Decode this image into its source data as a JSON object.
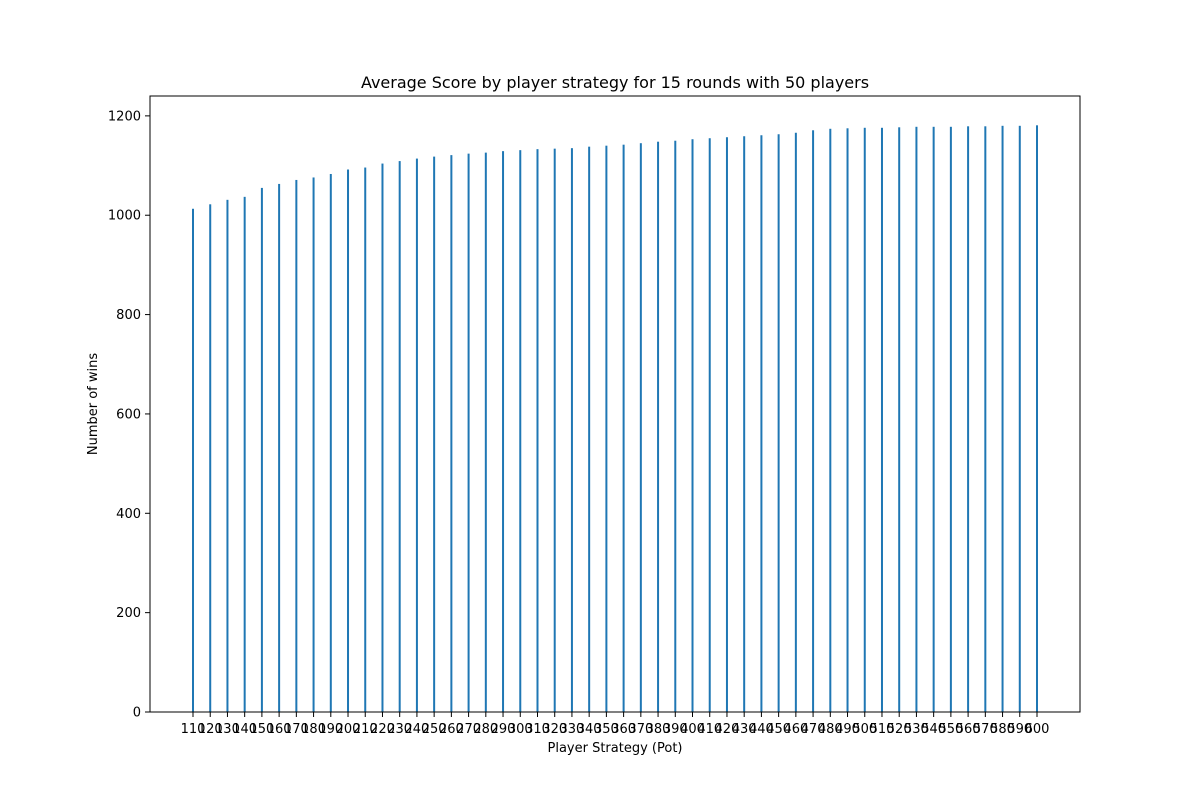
{
  "chart_data": {
    "type": "bar",
    "title": "Average Score by player strategy for 15 rounds with 50 players",
    "xlabel": "Player Strategy (Pot)",
    "ylabel": "Number of wins",
    "ylim": [
      0,
      1240
    ],
    "yticks": [
      0,
      200,
      400,
      600,
      800,
      1000,
      1200
    ],
    "grid": false,
    "bar_color": "#1f77b4",
    "categories": [
      "110",
      "120",
      "130",
      "140",
      "150",
      "160",
      "170",
      "180",
      "190",
      "200",
      "210",
      "220",
      "230",
      "240",
      "250",
      "260",
      "270",
      "280",
      "290",
      "300",
      "310",
      "320",
      "330",
      "340",
      "350",
      "360",
      "370",
      "380",
      "390",
      "400",
      "410",
      "420",
      "430",
      "440",
      "450",
      "460",
      "470",
      "480",
      "490",
      "500",
      "510",
      "520",
      "530",
      "540",
      "550",
      "560",
      "570",
      "580",
      "590",
      "600"
    ],
    "values": [
      1013,
      1022,
      1031,
      1037,
      1055,
      1063,
      1071,
      1076,
      1083,
      1092,
      1096,
      1104,
      1109,
      1114,
      1118,
      1121,
      1124,
      1126,
      1129,
      1131,
      1133,
      1134,
      1135,
      1138,
      1140,
      1142,
      1145,
      1148,
      1150,
      1153,
      1155,
      1157,
      1159,
      1161,
      1163,
      1166,
      1171,
      1174,
      1175,
      1176,
      1176,
      1177,
      1178,
      1178,
      1178,
      1179,
      1179,
      1180,
      1180,
      1181
    ]
  }
}
